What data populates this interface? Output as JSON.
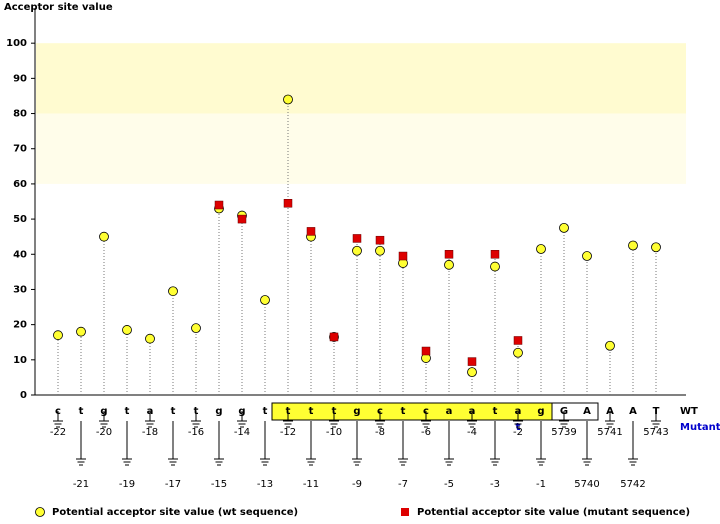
{
  "chart_data": {
    "type": "lollipop",
    "y_axis_label": "Acceptor site value",
    "categories": [
      "-22",
      "-21",
      "-20",
      "-19",
      "-18",
      "-17",
      "-16",
      "-15",
      "-14",
      "-13",
      "-12",
      "-11",
      "-10",
      "-9",
      "-8",
      "-7",
      "-6",
      "-5",
      "-4",
      "-3",
      "-2",
      "-1",
      "5739",
      "5740",
      "5741",
      "5742",
      "5743"
    ],
    "wt_label": "WT",
    "mutant_label": "Mutant",
    "wt_letters": [
      "c",
      "t",
      "g",
      "t",
      "a",
      "t",
      "t",
      "g",
      "g",
      "t",
      "t",
      "t",
      "t",
      "g",
      "c",
      "t",
      "c",
      "a",
      "a",
      "t",
      "a",
      "g",
      "G",
      "A",
      "A",
      "A",
      "T"
    ],
    "mutant_letters": [
      null,
      null,
      null,
      null,
      null,
      null,
      null,
      null,
      null,
      null,
      null,
      null,
      null,
      null,
      null,
      null,
      null,
      null,
      null,
      null,
      "t",
      null,
      null,
      null,
      null,
      null,
      null
    ],
    "series": [
      {
        "name": "Potential acceptor site value (wt sequence)",
        "color": "#ffff33",
        "marker": "circle",
        "values": [
          17,
          18,
          45,
          18.5,
          16,
          29.5,
          19,
          53,
          51,
          27,
          84,
          45,
          16.5,
          41,
          41,
          37.5,
          10.5,
          37,
          6.5,
          36.5,
          12,
          41.5,
          47.5,
          39.5,
          14,
          42.5,
          42
        ]
      },
      {
        "name": "Potential acceptor site value (mutant sequence)",
        "color": "#dd0000",
        "marker": "square",
        "values": [
          null,
          null,
          null,
          null,
          null,
          null,
          null,
          54,
          50,
          null,
          54.5,
          46.5,
          16.5,
          44.5,
          44,
          39.5,
          12.5,
          40,
          9.5,
          40,
          15.5,
          null,
          null,
          null,
          null,
          null,
          null
        ]
      }
    ],
    "ylim": [
      0,
      110
    ],
    "yticks": [
      0,
      10,
      20,
      30,
      40,
      50,
      60,
      70,
      80,
      90,
      100
    ],
    "bands": [
      {
        "from": 80,
        "to": 100,
        "color": "#fffbd0"
      },
      {
        "from": 60,
        "to": 80,
        "color": "#fffdea"
      }
    ]
  }
}
